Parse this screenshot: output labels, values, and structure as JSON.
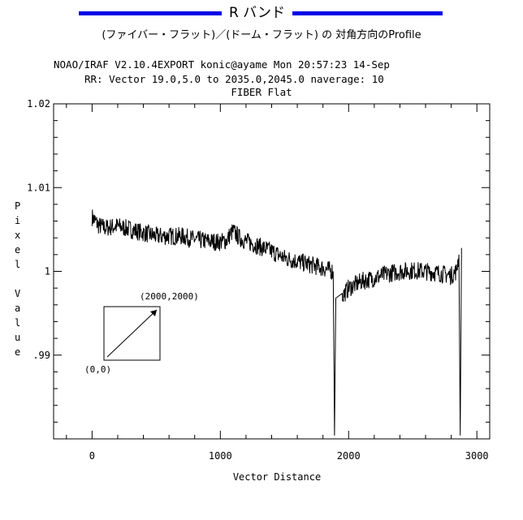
{
  "header": {
    "band_title": "R バンド",
    "subtitle": "(ファイバー・フラット)／(ドーム・フラット) の 対角方向のProfile"
  },
  "plot_header": {
    "iraf_line": "NOAO/IRAF V2.10.4EXPORT konic@ayame Mon 20:57:23 14-Sep",
    "vector_line": "RR: Vector 19.0,5.0 to 2035.0,2045.0 naverage: 10"
  },
  "colors": {
    "header_rule": "#0000e6",
    "axis": "#000000",
    "series": "#000000"
  },
  "chart_data": {
    "type": "line",
    "title": "FIBER Flat",
    "xlabel": "Vector Distance",
    "ylabel": "Pixel Value",
    "xlim": [
      -300,
      3100
    ],
    "ylim": [
      0.98,
      1.02
    ],
    "x_ticks": [
      0,
      1000,
      2000,
      3000
    ],
    "x_tick_labels": [
      "0",
      "1000",
      "2000",
      "3000"
    ],
    "y_ticks": [
      0.99,
      1.0,
      1.01,
      1.02
    ],
    "y_tick_labels": [
      ".99",
      "1",
      "1.01",
      "1.02"
    ],
    "grid": false,
    "legend": "none",
    "series": [
      {
        "x": [
          0,
          50,
          100,
          200,
          300,
          400,
          500,
          600,
          700,
          800,
          900,
          1000,
          1050,
          1080,
          1100,
          1150,
          1200,
          1300,
          1400,
          1500,
          1600,
          1700,
          1800,
          1880,
          1890,
          1900,
          1950,
          2000,
          2100,
          2200,
          2300,
          2400,
          2500,
          2600,
          2700,
          2800,
          2840,
          2860,
          2870,
          2880
        ],
        "y": [
          1.0065,
          1.0055,
          1.0052,
          1.0054,
          1.005,
          1.0046,
          1.0042,
          1.0042,
          1.0042,
          1.0038,
          1.0036,
          1.0035,
          1.0037,
          1.0045,
          1.0048,
          1.004,
          1.0036,
          1.003,
          1.0024,
          1.0016,
          1.0012,
          1.0008,
          1.0004,
          1.0,
          0.9804,
          0.9968,
          0.997,
          0.998,
          0.9988,
          0.9992,
          0.9997,
          1.0,
          1.0001,
          1.0,
          0.9998,
          0.9995,
          1.0,
          1.002,
          0.9804,
          1.0028
        ]
      }
    ],
    "inset": {
      "start_label": "(0,0)",
      "end_label": "(2000,2000)"
    }
  }
}
